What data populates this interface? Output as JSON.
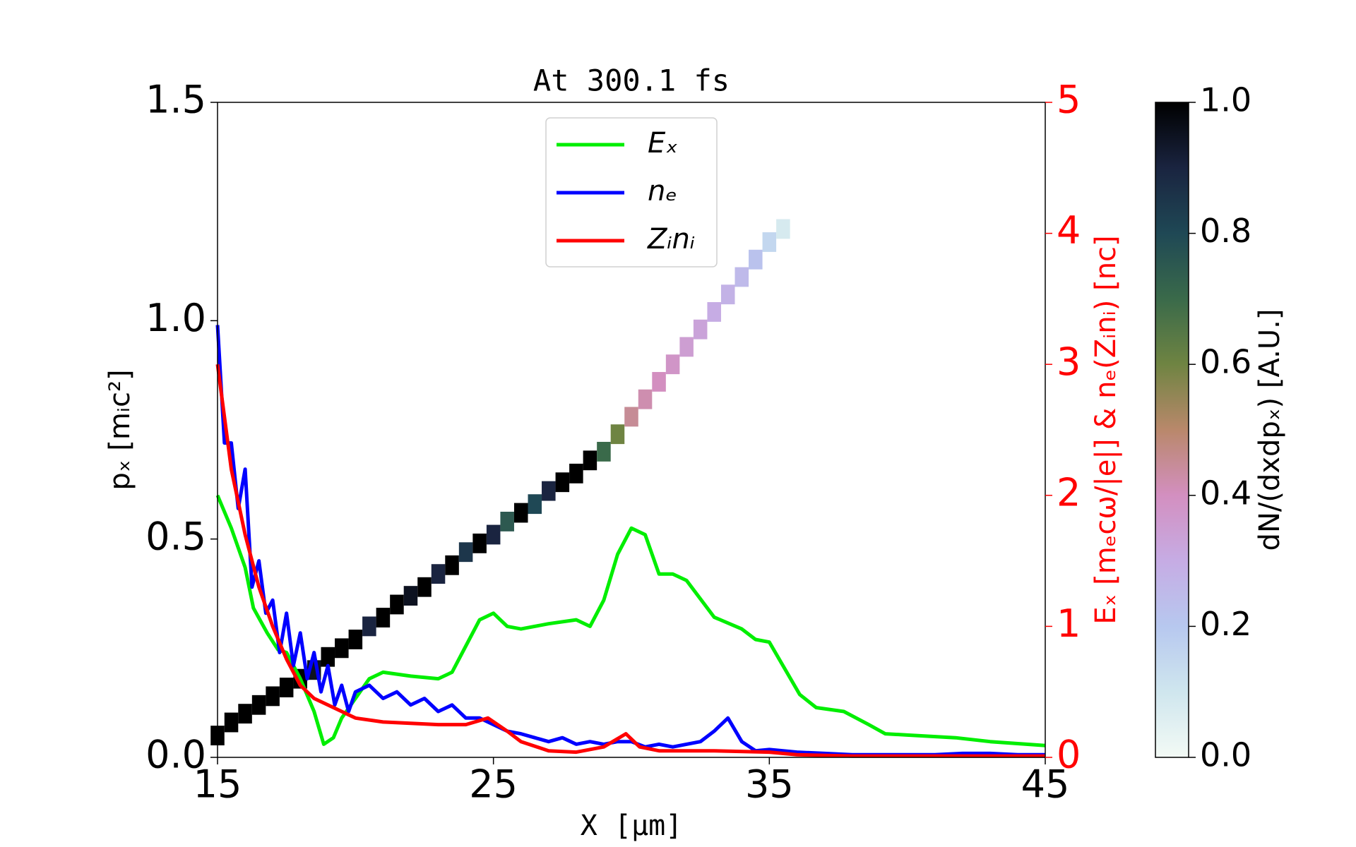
{
  "chart_data": {
    "type": "line",
    "title": "At 300.1 fs",
    "x_label": "X  [μm]",
    "y_label": "pₓ  [mᵢc²]",
    "y2_label": "Eₓ  [mₑcω/|e|]  &  nₑ(Zᵢnᵢ)  [nc]",
    "xlim": [
      15,
      45
    ],
    "xticks": [
      15,
      25,
      35,
      45
    ],
    "ylim": [
      0,
      1.5
    ],
    "yticks": [
      {
        "value": 0,
        "label": "0.0"
      },
      0.5,
      {
        "value": 1,
        "label": "1.0"
      },
      1.5
    ],
    "y2lim": [
      0,
      5
    ],
    "y2ticks": [
      0,
      1,
      2,
      3,
      4,
      5
    ],
    "y2_color": "#ff0000",
    "legend": "upper center",
    "heatmap": {
      "x": [
        15,
        15.5,
        16,
        16.5,
        17,
        17.5,
        18,
        18.5,
        19,
        19.5,
        20,
        20.5,
        21,
        21.5,
        22,
        22.5,
        23,
        23.5,
        24,
        24.5,
        25,
        25.5,
        26,
        26.5,
        27,
        27.5,
        28,
        28.5,
        29,
        29.5,
        30,
        30.5,
        31,
        31.5,
        32,
        32.5,
        33,
        33.5,
        34,
        34.5,
        35,
        35.5
      ],
      "y": [
        0.05,
        0.08,
        0.1,
        0.12,
        0.14,
        0.16,
        0.18,
        0.2,
        0.23,
        0.25,
        0.27,
        0.3,
        0.32,
        0.35,
        0.37,
        0.39,
        0.42,
        0.44,
        0.47,
        0.49,
        0.51,
        0.54,
        0.56,
        0.58,
        0.61,
        0.63,
        0.65,
        0.68,
        0.7,
        0.74,
        0.78,
        0.82,
        0.86,
        0.9,
        0.94,
        0.98,
        1.02,
        1.06,
        1.1,
        1.14,
        1.18,
        1.21
      ],
      "values": [
        1,
        1,
        1,
        1,
        1,
        1,
        1,
        0.95,
        1,
        1,
        1,
        0.9,
        1,
        1,
        0.95,
        1,
        0.9,
        1,
        0.85,
        1,
        0.9,
        0.75,
        1,
        0.8,
        0.9,
        1,
        1,
        1,
        0.7,
        0.6,
        0.45,
        0.42,
        0.4,
        0.38,
        0.35,
        0.33,
        0.3,
        0.28,
        0.25,
        0.22,
        0.15,
        0.08
      ]
    },
    "colorbar_label": "dN/(dxdpₓ)  [A.U.]",
    "clim": [
      0,
      1
    ],
    "cticks": [
      {
        "value": 0,
        "label": "0.0"
      },
      0.2,
      0.4,
      0.6,
      0.8,
      {
        "value": 1,
        "label": "1.0"
      }
    ],
    "colormap": [
      "#f3faf5",
      "#cfe6ee",
      "#b7c8ef",
      "#c6acE4",
      "#d38fc0",
      "#b9886b",
      "#6f8442",
      "#3a6a4a",
      "#1f4855",
      "#1a2440",
      "#000000"
    ],
    "series": [
      {
        "name": "Eₓ",
        "color": "#00ee00",
        "axis": "y2",
        "x": [
          15,
          15.5,
          16,
          16.3,
          16.8,
          17.2,
          17.5,
          18,
          18.5,
          18.85,
          19.2,
          19.5,
          20,
          20.5,
          21,
          22,
          23,
          23.5,
          24,
          24.5,
          25,
          25.5,
          26,
          27,
          28,
          28.5,
          29,
          29.5,
          30,
          30.5,
          31,
          31.5,
          32,
          33,
          34,
          34.5,
          35,
          36.1,
          36.7,
          37.7,
          38.6,
          39.2,
          40,
          41.75,
          43,
          45
        ],
        "values": [
          2.0,
          1.75,
          1.45,
          1.14,
          0.95,
          0.82,
          0.8,
          0.6,
          0.35,
          0.1,
          0.15,
          0.3,
          0.45,
          0.6,
          0.65,
          0.62,
          0.6,
          0.65,
          0.85,
          1.05,
          1.1,
          1.0,
          0.98,
          1.02,
          1.05,
          1.0,
          1.2,
          1.55,
          1.75,
          1.7,
          1.4,
          1.4,
          1.35,
          1.07,
          0.98,
          0.9,
          0.88,
          0.48,
          0.38,
          0.35,
          0.25,
          0.18,
          0.17,
          0.15,
          0.12,
          0.09
        ]
      },
      {
        "name": "nₑ",
        "color": "#0000ff",
        "axis": "y2",
        "x": [
          15,
          15.25,
          15.5,
          15.75,
          16,
          16.25,
          16.5,
          16.75,
          17,
          17.25,
          17.5,
          17.75,
          18,
          18.25,
          18.5,
          18.75,
          19,
          19.25,
          19.5,
          19.75,
          20,
          20.5,
          21,
          21.5,
          22,
          22.5,
          23,
          23.5,
          24,
          24.5,
          25,
          25.5,
          26,
          26.5,
          27,
          27.5,
          28,
          28.5,
          29,
          29.5,
          30,
          30.5,
          31,
          31.5,
          32,
          32.5,
          33,
          33.5,
          34,
          34.5,
          35,
          35.5,
          36,
          37,
          38,
          39,
          40,
          41,
          42,
          43,
          44,
          45
        ],
        "values": [
          3.3,
          2.4,
          2.4,
          1.9,
          2.2,
          1.3,
          1.5,
          1.1,
          1.2,
          0.8,
          1.1,
          0.7,
          0.95,
          0.6,
          0.8,
          0.5,
          0.7,
          0.4,
          0.55,
          0.35,
          0.5,
          0.55,
          0.45,
          0.5,
          0.4,
          0.45,
          0.35,
          0.4,
          0.3,
          0.3,
          0.25,
          0.2,
          0.18,
          0.15,
          0.12,
          0.15,
          0.1,
          0.12,
          0.1,
          0.12,
          0.12,
          0.08,
          0.1,
          0.08,
          0.1,
          0.12,
          0.2,
          0.3,
          0.12,
          0.05,
          0.06,
          0.05,
          0.04,
          0.03,
          0.02,
          0.02,
          0.02,
          0.02,
          0.03,
          0.03,
          0.02,
          0.02
        ]
      },
      {
        "name": "Zᵢnᵢ",
        "color": "#ff0000",
        "axis": "y2",
        "x": [
          15,
          15.5,
          16,
          16.5,
          17,
          17.5,
          18,
          18.5,
          19,
          19.5,
          20,
          21,
          22,
          23,
          24,
          24.8,
          25.5,
          26,
          27,
          28,
          29,
          29.8,
          30.3,
          31,
          33,
          35,
          36,
          38,
          45
        ],
        "values": [
          3.0,
          2.2,
          1.7,
          1.3,
          1.0,
          0.75,
          0.55,
          0.45,
          0.4,
          0.35,
          0.3,
          0.27,
          0.26,
          0.25,
          0.25,
          0.3,
          0.2,
          0.12,
          0.05,
          0.04,
          0.08,
          0.18,
          0.08,
          0.05,
          0.05,
          0.04,
          0.02,
          0.01,
          0.01
        ]
      }
    ]
  }
}
